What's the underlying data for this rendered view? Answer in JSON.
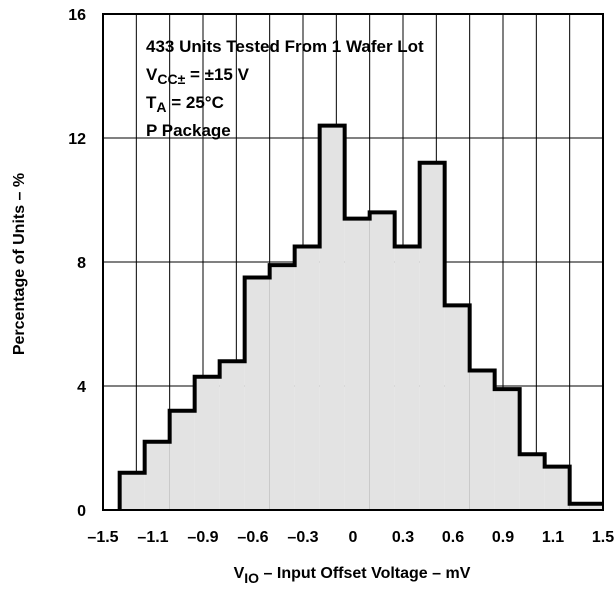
{
  "chart_data": {
    "type": "bar",
    "histogram": true,
    "xlabel": {
      "main": "V",
      "sub": "IO",
      "rest": " – Input Offset Voltage – mV"
    },
    "ylabel": "Percentage of Units – %",
    "xlim": [
      -1.5,
      1.5
    ],
    "ylim": [
      0,
      16
    ],
    "x_ticks": [
      -1.5,
      -1.3,
      -1.1,
      -0.9,
      -0.7,
      -0.5,
      -0.3,
      -0.1,
      0.1,
      0.3,
      0.5,
      0.7,
      0.9,
      1.1,
      1.3,
      1.5
    ],
    "x_tick_labels": [
      "–1.5",
      "–1.1",
      "–0.9",
      "–0.6",
      "–0.3",
      "0",
      "0.3",
      "0.6",
      "0.9",
      "1.1",
      "1.5"
    ],
    "y_tick_labels": [
      "0",
      "4",
      "8",
      "12",
      "16"
    ],
    "grid": true,
    "annotations": [
      {
        "text": "433 Units Tested From 1 Wafer Lot"
      },
      {
        "main": "V",
        "sub": "CC±",
        "rest": " = ±15 V"
      },
      {
        "main": "T",
        "sub": "A",
        "rest": " = 25°C"
      },
      {
        "text": "P Package"
      }
    ],
    "bins": [
      {
        "x0": -1.4,
        "x1": -1.25,
        "value": 1.2
      },
      {
        "x0": -1.25,
        "x1": -1.1,
        "value": 2.2
      },
      {
        "x0": -1.1,
        "x1": -0.95,
        "value": 3.2
      },
      {
        "x0": -0.95,
        "x1": -0.8,
        "value": 4.3
      },
      {
        "x0": -0.8,
        "x1": -0.65,
        "value": 4.8
      },
      {
        "x0": -0.65,
        "x1": -0.5,
        "value": 7.5
      },
      {
        "x0": -0.5,
        "x1": -0.35,
        "value": 7.9
      },
      {
        "x0": -0.35,
        "x1": -0.2,
        "value": 8.5
      },
      {
        "x0": -0.2,
        "x1": -0.05,
        "value": 12.4
      },
      {
        "x0": -0.05,
        "x1": 0.1,
        "value": 9.4
      },
      {
        "x0": 0.1,
        "x1": 0.25,
        "value": 9.6
      },
      {
        "x0": 0.25,
        "x1": 0.4,
        "value": 8.5
      },
      {
        "x0": 0.4,
        "x1": 0.55,
        "value": 11.2
      },
      {
        "x0": 0.55,
        "x1": 0.7,
        "value": 6.6
      },
      {
        "x0": 0.7,
        "x1": 0.85,
        "value": 4.5
      },
      {
        "x0": 0.85,
        "x1": 1.0,
        "value": 3.9
      },
      {
        "x0": 1.0,
        "x1": 1.15,
        "value": 1.8
      },
      {
        "x0": 1.15,
        "x1": 1.3,
        "value": 1.4
      },
      {
        "x0": 1.3,
        "x1": 1.5,
        "value": 0.2
      }
    ],
    "fill_color": "#e3e3e3",
    "line_color": "#000000"
  }
}
